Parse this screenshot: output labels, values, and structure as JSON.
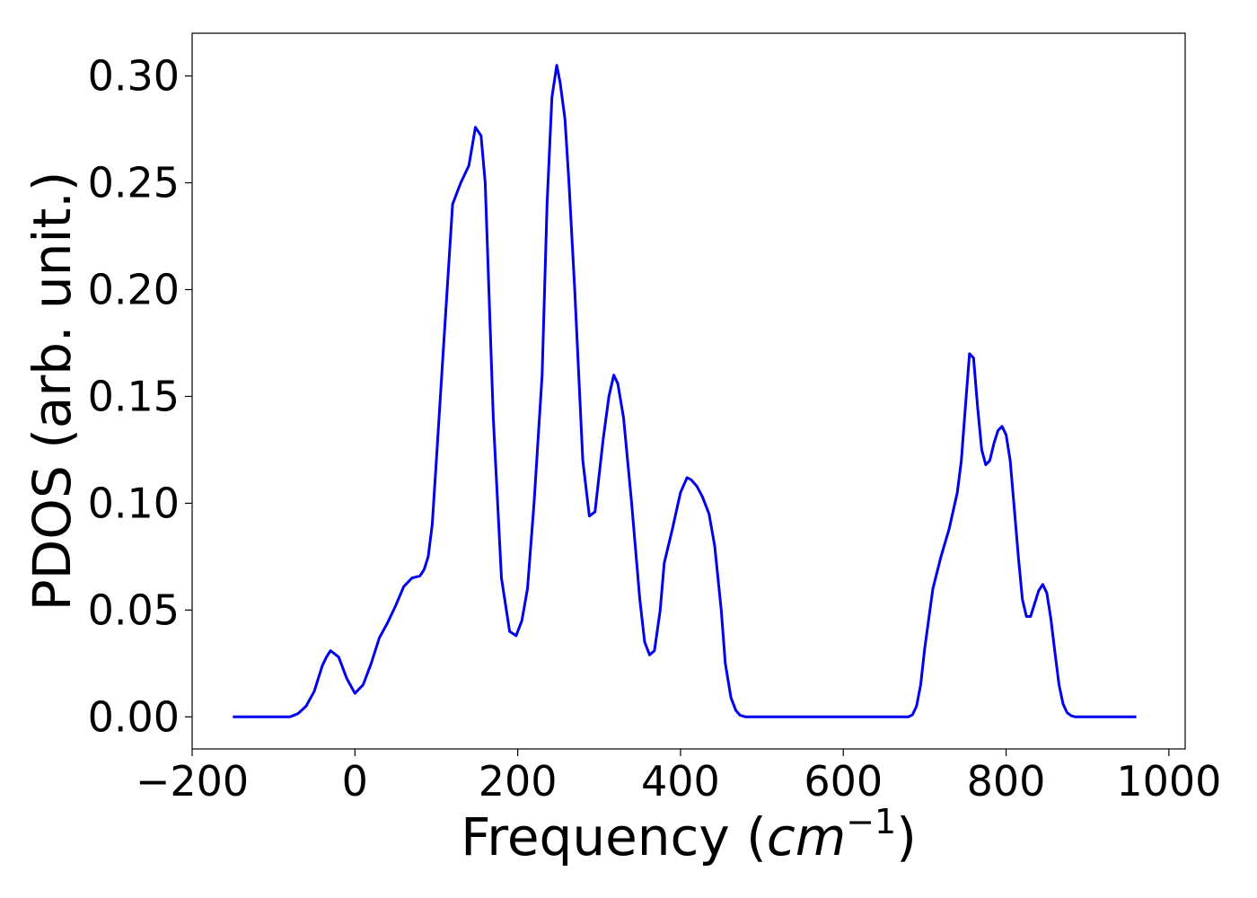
{
  "chart_data": {
    "type": "line",
    "title": "",
    "xlabel_main": "Frequency (",
    "xlabel_unit": "cm",
    "xlabel_exp": "−1",
    "xlabel_close": ")",
    "ylabel": "PDOS (arb. unit.)",
    "xlim": [
      -200,
      1020
    ],
    "ylim": [
      -0.015,
      0.32
    ],
    "xticks": [
      -200,
      0,
      200,
      400,
      600,
      800,
      1000
    ],
    "xtick_labels": [
      "−200",
      "0",
      "200",
      "400",
      "600",
      "800",
      "1000"
    ],
    "yticks": [
      0.0,
      0.05,
      0.1,
      0.15,
      0.2,
      0.25,
      0.3
    ],
    "ytick_labels": [
      "0.00",
      "0.05",
      "0.10",
      "0.15",
      "0.20",
      "0.25",
      "0.30"
    ],
    "grid": false,
    "legend": "none",
    "series": [
      {
        "color": "#0000ee",
        "x": [
          -150,
          -80,
          -70,
          -60,
          -50,
          -40,
          -35,
          -30,
          -20,
          -10,
          0,
          10,
          20,
          30,
          40,
          50,
          60,
          70,
          80,
          85,
          90,
          95,
          100,
          110,
          120,
          130,
          140,
          148,
          155,
          160,
          170,
          180,
          190,
          198,
          205,
          212,
          220,
          230,
          236,
          242,
          248,
          252,
          258,
          263,
          270,
          280,
          288,
          295,
          305,
          312,
          318,
          323,
          330,
          340,
          350,
          356,
          362,
          368,
          375,
          380,
          390,
          400,
          408,
          413,
          420,
          427,
          435,
          442,
          450,
          455,
          462,
          468,
          473,
          480,
          490,
          500,
          680,
          685,
          690,
          695,
          700,
          710,
          720,
          730,
          740,
          745,
          750,
          755,
          760,
          765,
          770,
          775,
          780,
          785,
          790,
          795,
          800,
          805,
          810,
          815,
          820,
          825,
          830,
          835,
          840,
          845,
          850,
          855,
          860,
          865,
          870,
          875,
          880,
          885,
          890,
          900,
          960
        ],
        "y": [
          0.0,
          0.0,
          0.0015,
          0.005,
          0.012,
          0.024,
          0.028,
          0.031,
          0.028,
          0.018,
          0.011,
          0.015,
          0.025,
          0.037,
          0.044,
          0.052,
          0.061,
          0.065,
          0.066,
          0.069,
          0.075,
          0.09,
          0.12,
          0.18,
          0.24,
          0.25,
          0.258,
          0.276,
          0.272,
          0.25,
          0.14,
          0.065,
          0.04,
          0.038,
          0.045,
          0.06,
          0.1,
          0.16,
          0.24,
          0.29,
          0.305,
          0.297,
          0.28,
          0.25,
          0.2,
          0.12,
          0.094,
          0.096,
          0.13,
          0.15,
          0.16,
          0.156,
          0.14,
          0.1,
          0.055,
          0.035,
          0.029,
          0.031,
          0.05,
          0.072,
          0.088,
          0.105,
          0.112,
          0.111,
          0.108,
          0.103,
          0.095,
          0.08,
          0.05,
          0.025,
          0.009,
          0.003,
          0.0008,
          0.0,
          0.0,
          0.0,
          0.0,
          0.001,
          0.005,
          0.015,
          0.032,
          0.06,
          0.075,
          0.088,
          0.105,
          0.12,
          0.145,
          0.17,
          0.168,
          0.145,
          0.125,
          0.118,
          0.12,
          0.128,
          0.134,
          0.136,
          0.132,
          0.12,
          0.098,
          0.075,
          0.055,
          0.047,
          0.047,
          0.053,
          0.059,
          0.062,
          0.058,
          0.046,
          0.03,
          0.015,
          0.006,
          0.002,
          0.0005,
          0.0,
          0.0,
          0.0,
          0.0
        ]
      }
    ]
  }
}
